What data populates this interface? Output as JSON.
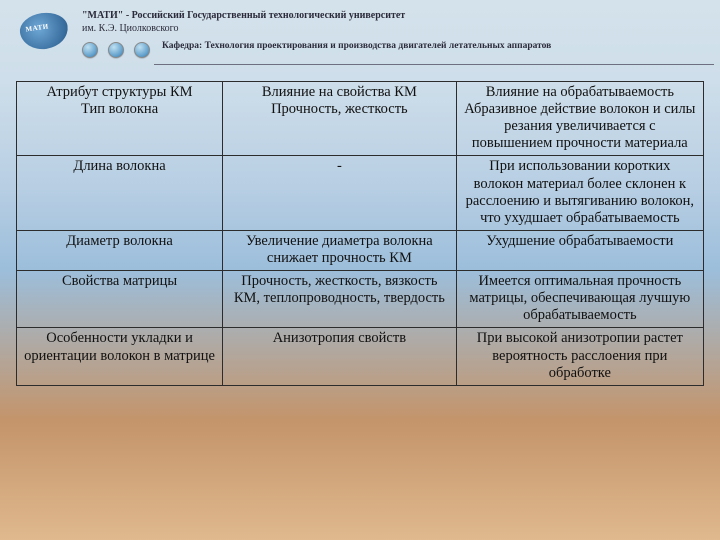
{
  "header": {
    "title": "\"МАТИ\" - Российский Государственный технологический университет",
    "subtitle": "им. К.Э. Циолковского",
    "dept_label": "Кафедра:",
    "dept": "Технология проектирования и производства двигателей летательных аппаратов"
  },
  "table": {
    "columns": [
      "Атрибут структуры КМ",
      "Влияние на свойства КМ",
      "Влияние на обрабатываемость"
    ],
    "col_widths_pct": [
      30,
      34,
      36
    ],
    "rows": [
      [
        "Тип волокна",
        "Прочность, жесткость",
        "Абразивное действие волокон и силы резания увеличивается с повышением прочности материала"
      ],
      [
        "Длина волокна",
        "-",
        "При использовании коротких волокон материал более склонен к расслоению и вытягиванию волокон, что ухудшает обрабатываемость"
      ],
      [
        "Диаметр волокна",
        "Увеличение диаметра волокна снижает прочность КМ",
        "Ухудшение обрабатываемости"
      ],
      [
        "Свойства матрицы",
        "Прочность, жесткость, вязкость КМ, теплопроводность, твердость",
        "Имеется оптимальная прочность матрицы, обеспечивающая лучшую обрабатываемость"
      ],
      [
        "Особенности укладки и ориентации волокон в матрице",
        "Анизотропия свойств",
        "При высокой анизотропии растет вероятность расслоения при обработке"
      ]
    ],
    "border_color": "#2c2c2c",
    "font_size_pt": 11,
    "text_color": "#111111"
  },
  "background": {
    "gradient_stops": [
      "#d4e2eb",
      "#cedeea",
      "#b7cee3",
      "#9cbedb",
      "#c4946a",
      "#e0b98e"
    ]
  }
}
